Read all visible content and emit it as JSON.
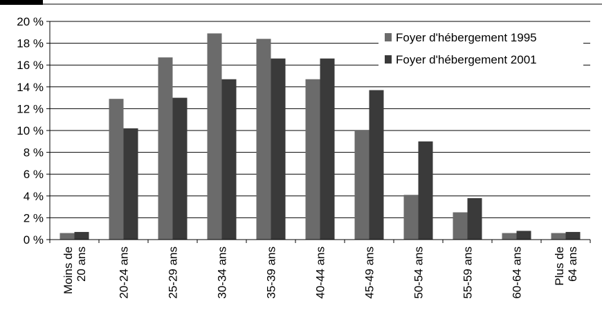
{
  "chart_data": {
    "type": "bar",
    "categories": [
      [
        "Moins de",
        "20 ans"
      ],
      [
        "20-24 ans"
      ],
      [
        "25-29 ans"
      ],
      [
        "30-34 ans"
      ],
      [
        "35-39 ans"
      ],
      [
        "40-44 ans"
      ],
      [
        "45-49 ans"
      ],
      [
        "50-54 ans"
      ],
      [
        "55-59 ans"
      ],
      [
        "60-64 ans"
      ],
      [
        "Plus de",
        "64 ans"
      ]
    ],
    "series": [
      {
        "name": "Foyer d'hébergement 1995",
        "color": "#6b6b6b",
        "values": [
          0.6,
          12.9,
          16.7,
          18.9,
          18.4,
          14.7,
          10.0,
          4.1,
          2.5,
          0.6,
          0.6
        ]
      },
      {
        "name": "Foyer d'hébergement 2001",
        "color": "#3a3a3a",
        "values": [
          0.7,
          10.2,
          13.0,
          14.7,
          16.6,
          16.6,
          13.7,
          9.0,
          3.8,
          0.8,
          0.7
        ]
      }
    ],
    "ylim": [
      0,
      20
    ],
    "yticks": [
      "0 %",
      "2 %",
      "4 %",
      "6 %",
      "8 %",
      "10 %",
      "12 %",
      "14 %",
      "16 %",
      "18 %",
      "20 %"
    ],
    "grid": true,
    "legend_position": "top-right"
  }
}
